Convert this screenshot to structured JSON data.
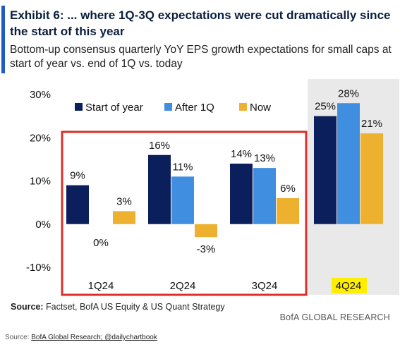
{
  "header": {
    "title": "Exhibit 6: ... where 1Q-3Q expectations were cut dramatically since the start of this year",
    "subtitle": "Bottom-up consensus quarterly YoY EPS growth expectations for small caps at start of year vs. end of 1Q vs. today"
  },
  "colors": {
    "accent": "#1e5bc6",
    "series": [
      "#0b1f5c",
      "#3f8ee0",
      "#eeb12f"
    ],
    "highlight_box": "#d9302c",
    "shaded_panel": "#e9e9e9",
    "label_highlight": "#ffee00"
  },
  "chart_data": {
    "type": "bar",
    "categories": [
      "1Q24",
      "2Q24",
      "3Q24",
      "4Q24"
    ],
    "series": [
      {
        "name": "Start of year",
        "values": [
          9,
          16,
          14,
          25
        ],
        "labels": [
          "9%",
          "16%",
          "14%",
          "25%"
        ]
      },
      {
        "name": "After 1Q",
        "values": [
          0,
          11,
          13,
          28
        ],
        "labels": [
          "0%",
          "11%",
          "13%",
          "28%"
        ]
      },
      {
        "name": "Now",
        "values": [
          3,
          -3,
          6,
          21
        ],
        "labels": [
          "3%",
          "-3%",
          "6%",
          "21%"
        ]
      }
    ],
    "yticks": [
      "30%",
      "20%",
      "10%",
      "0%",
      "-10%"
    ],
    "ytick_values": [
      30,
      20,
      10,
      0,
      -10
    ],
    "ylim": [
      -10,
      30
    ],
    "legend_position": "top",
    "grid": false,
    "highlight": "red box around 1Q24-3Q24; 4Q24 shaded with yellow label"
  },
  "footer": {
    "source_label": "Source:",
    "source_text": "Factset, BofA US Equity & US Quant Strategy",
    "brand": "BofA GLOBAL RESEARCH",
    "credit_prefix": "Source: ",
    "credit_link": "BofA Global Research; @dailychartbook"
  }
}
